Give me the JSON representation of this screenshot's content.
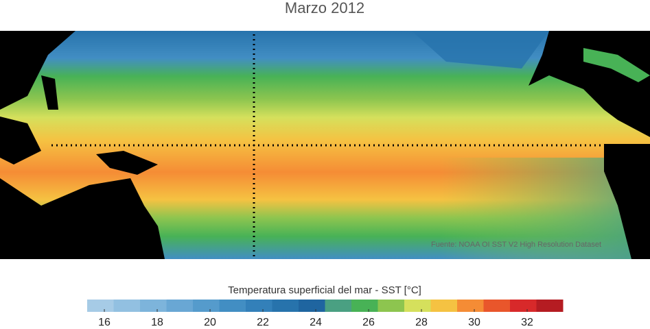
{
  "title": "Marzo 2012",
  "map": {
    "source": "Fuente: NOAA OI SST V2 High Resolution Dataset"
  },
  "colorbar": {
    "label": "Temperatura superficial del mar - SST  [°C]",
    "lim": [
      15.35,
      33.35
    ],
    "colors": [
      "#a6cbe6",
      "#92c0e1",
      "#7db4db",
      "#69a7d4",
      "#559bcc",
      "#428ec3",
      "#3380b9",
      "#2773ac",
      "#1f65a0",
      "#4aa082",
      "#48b256",
      "#8dc54f",
      "#d5e05c",
      "#f5c242",
      "#f58c35",
      "#e9562b",
      "#d8292a",
      "#b51c22"
    ],
    "ticks": [
      16,
      18,
      20,
      22,
      24,
      26,
      28,
      30,
      32
    ]
  }
}
